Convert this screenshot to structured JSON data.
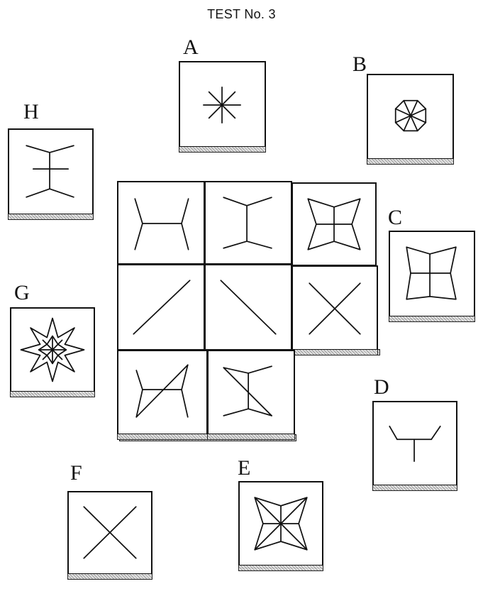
{
  "title": "TEST No. 3",
  "options": [
    {
      "label": "A",
      "icon": "asterisk-icon"
    },
    {
      "label": "B",
      "icon": "octagon-with-diagonals-icon"
    },
    {
      "label": "C",
      "icon": "bowtie-quad-with-cross-icon"
    },
    {
      "label": "D",
      "icon": "cup-with-stem-icon"
    },
    {
      "label": "E",
      "icon": "four-point-star-icon"
    },
    {
      "label": "F",
      "icon": "x-cross-icon"
    },
    {
      "label": "G",
      "icon": "eight-point-star-icon"
    },
    {
      "label": "H",
      "icon": "i-shape-with-crossbar-icon"
    }
  ],
  "matrix": [
    [
      "h-shape-icon",
      "i-shape-icon",
      "bowtie-with-cross-icon"
    ],
    [
      "forward-diagonal-icon",
      "back-diagonal-icon",
      "x-cross-icon"
    ],
    [
      "h-shape-with-diagonal-icon",
      "i-shape-with-diagonal-icon",
      "missing"
    ]
  ]
}
